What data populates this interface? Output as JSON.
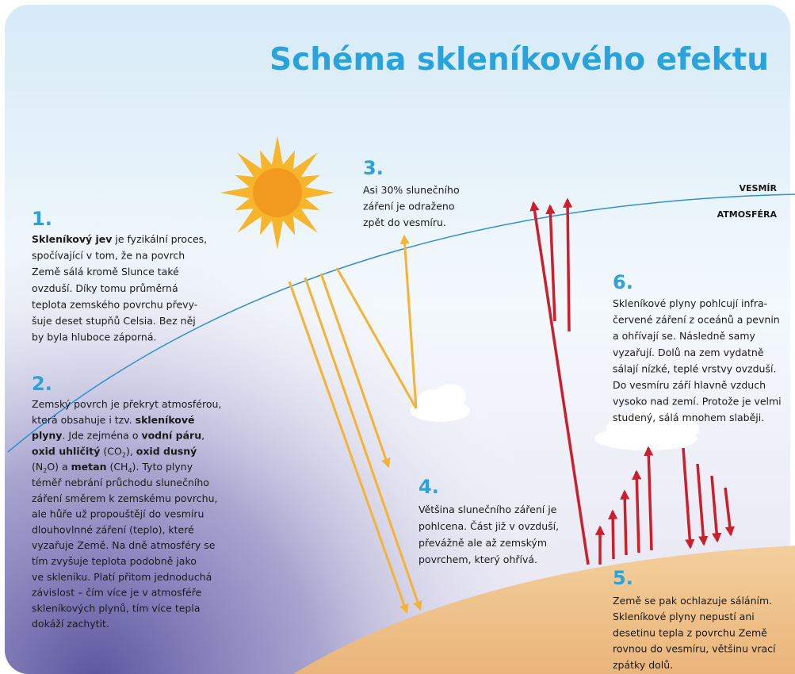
{
  "title": "Schéma skleníkového efektu",
  "labels": {
    "space": "VESMÍR",
    "atmosphere": "ATMOSFÉRA"
  },
  "blocks": [
    {
      "number": "1.",
      "lines": [
        [
          {
            "t": "Skleníkový jev",
            "b": true
          },
          {
            "t": " je fyzikální proces,"
          }
        ],
        [
          {
            "t": "spočívající v tom, že na povrch"
          }
        ],
        [
          {
            "t": "Země sálá kromě Slunce také"
          }
        ],
        [
          {
            "t": "ovzduší. Díky tomu průměrná"
          }
        ],
        [
          {
            "t": "teplota zemského povrchu převy-"
          }
        ],
        [
          {
            "t": "šuje deset stupňů Celsia. Bez něj"
          }
        ],
        [
          {
            "t": "by byla hluboce záporná."
          }
        ]
      ]
    },
    {
      "number": "2.",
      "lines": [
        [
          {
            "t": "Zemský povrch je překryt atmosférou,"
          }
        ],
        [
          {
            "t": "která obsahuje i tzv. "
          },
          {
            "t": "skleníkové",
            "b": true
          }
        ],
        [
          {
            "t": "plyny",
            "b": true
          },
          {
            "t": ". Jde zejména o "
          },
          {
            "t": "vodní páru",
            "b": true
          },
          {
            "t": ","
          }
        ],
        [
          {
            "t": "oxid uhličitý",
            "b": true
          },
          {
            "t": " (CO"
          },
          {
            "t": "2",
            "sub": true
          },
          {
            "t": "), "
          },
          {
            "t": "oxid dusný",
            "b": true
          }
        ],
        [
          {
            "t": "(N"
          },
          {
            "t": "2",
            "sub": true
          },
          {
            "t": "O) a "
          },
          {
            "t": "metan",
            "b": true
          },
          {
            "t": " (CH"
          },
          {
            "t": "4",
            "sub": true
          },
          {
            "t": "). Tyto plyny"
          }
        ],
        [
          {
            "t": "téměř nebrání průchodu slunečního"
          }
        ],
        [
          {
            "t": "záření směrem k zemskému povrchu,"
          }
        ],
        [
          {
            "t": "ale hůře už propouštějí do vesmíru"
          }
        ],
        [
          {
            "t": "dlouhovlnné záření (teplo), které"
          }
        ],
        [
          {
            "t": "vyzařuje Země. Na dně atmosféry se"
          }
        ],
        [
          {
            "t": "tím zvyšuje teplota podobně jako"
          }
        ],
        [
          {
            "t": "ve skleníku. Platí přitom jednoduchá"
          }
        ],
        [
          {
            "t": "závislost – čím více je v atmosféře"
          }
        ],
        [
          {
            "t": "skleníkových plynů, tím více tepla"
          }
        ],
        [
          {
            "t": "dokáží zachytit."
          }
        ]
      ]
    },
    {
      "number": "3.",
      "lines": [
        [
          {
            "t": "Asi 30% slunečního"
          }
        ],
        [
          {
            "t": "záření je odraženo"
          }
        ],
        [
          {
            "t": "zpět do vesmíru."
          }
        ]
      ]
    },
    {
      "number": "4.",
      "lines": [
        [
          {
            "t": "Většina slunečního záření je"
          }
        ],
        [
          {
            "t": "pohlcena. Část již v ovzduší,"
          }
        ],
        [
          {
            "t": "převážně ale až zemským"
          }
        ],
        [
          {
            "t": "povrchem, který ohřívá."
          }
        ]
      ]
    },
    {
      "number": "5.",
      "lines": [
        [
          {
            "t": "Země se pak ochlazuje sáláním."
          }
        ],
        [
          {
            "t": "Skleníkové plyny nepustí ani"
          }
        ],
        [
          {
            "t": "desetinu tepla z povrchu Země"
          }
        ],
        [
          {
            "t": "rovnou do vesmíru, většinu vrací"
          }
        ],
        [
          {
            "t": "zpátky dolů."
          }
        ]
      ]
    },
    {
      "number": "6.",
      "lines": [
        [
          {
            "t": "Skleníkové plyny pohlcují infra-"
          }
        ],
        [
          {
            "t": "červené záření z oceánů a pevnin"
          }
        ],
        [
          {
            "t": "a ohřívají se. Následně samy"
          }
        ],
        [
          {
            "t": "vyzařují. Dolů na zem vydatně"
          }
        ],
        [
          {
            "t": "sálají nízké, teplé vrstvy ovzduší."
          }
        ],
        [
          {
            "t": "Do vesmíru září hlavně vzduch"
          }
        ],
        [
          {
            "t": "vysoko nad zemí. Protože je velmi"
          }
        ],
        [
          {
            "t": "studený, sálá mnohem slaběji."
          }
        ]
      ]
    }
  ]
}
